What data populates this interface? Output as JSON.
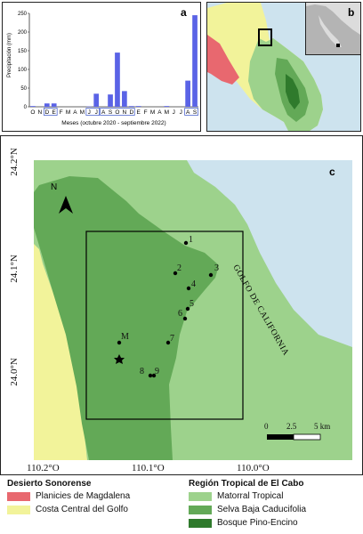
{
  "panel_a": {
    "label": "a",
    "ylabel": "Precipitación (mm)",
    "xlabel": "Meses (octubre 2020 - septiembre 2022)",
    "month_letters": [
      "O",
      "N",
      "D",
      "E",
      "F",
      "M",
      "A",
      "M",
      "J",
      "J",
      "A",
      "S",
      "O",
      "N",
      "D",
      "E",
      "F",
      "M",
      "A",
      "M",
      "J",
      "J",
      "A",
      "S"
    ],
    "boxed_groups": [
      [
        2,
        3
      ],
      [
        8,
        9
      ],
      [
        10,
        11,
        12,
        13,
        14
      ],
      [
        22,
        23
      ]
    ],
    "y_ticks": [
      "0",
      "50",
      "100",
      "150",
      "200",
      "250"
    ]
  },
  "chart_data": {
    "type": "bar",
    "categories": [
      "O",
      "N",
      "D",
      "E",
      "F",
      "M",
      "A",
      "M",
      "J",
      "J",
      "A",
      "S",
      "O",
      "N",
      "D",
      "E",
      "F",
      "M",
      "A",
      "M",
      "J",
      "J",
      "A",
      "S"
    ],
    "values": [
      2,
      0,
      9,
      9,
      0,
      0,
      0,
      0,
      1,
      35,
      0,
      33,
      145,
      42,
      2,
      2,
      0,
      0,
      0,
      2,
      0,
      0,
      70,
      245
    ],
    "title": "",
    "xlabel": "Meses (octubre 2020 - septiembre 2022)",
    "ylabel": "Precipitación (mm)",
    "ylim": [
      0,
      250
    ],
    "color": "#5a63e6"
  },
  "panel_b": {
    "label": "b"
  },
  "panel_c": {
    "label": "c",
    "north": "N",
    "gulf": "GOLFO DE CALIFORNIA",
    "lat_ticks": [
      "24.2°N",
      "24.1°N",
      "24.0°N"
    ],
    "lon_ticks": [
      "110.2°O",
      "110.1°O",
      "110.0°O"
    ],
    "scale_labels": [
      "0",
      "2.5",
      "5 km"
    ],
    "points": [
      {
        "id": "1",
        "label": "1"
      },
      {
        "id": "2",
        "label": "2"
      },
      {
        "id": "3",
        "label": "3"
      },
      {
        "id": "4",
        "label": "4"
      },
      {
        "id": "5",
        "label": "5"
      },
      {
        "id": "6",
        "label": "6"
      },
      {
        "id": "7",
        "label": "7"
      },
      {
        "id": "8",
        "label": "8"
      },
      {
        "id": "9",
        "label": "9"
      },
      {
        "id": "M",
        "label": "M"
      }
    ]
  },
  "legend": {
    "desert_title": "Desierto Sonorense",
    "desert_items": [
      {
        "label": "Planicies de Magdalena",
        "color": "#e8686f"
      },
      {
        "label": "Costa Central del Golfo",
        "color": "#f2f39a"
      }
    ],
    "tropical_title": "Región Tropical de El Cabo",
    "tropical_items": [
      {
        "label": "Matorral Tropical",
        "color": "#9dd28c"
      },
      {
        "label": "Selva Baja Caducifolia",
        "color": "#63a957"
      },
      {
        "label": "Bosque Pino-Encino",
        "color": "#2f7a2c"
      }
    ]
  },
  "colors": {
    "sea": "#cde3ee",
    "matorral": "#9dd28c",
    "selva": "#63a957",
    "bosque": "#2f7a2c",
    "costa": "#f2f39a",
    "planicies": "#e8686f",
    "inset_land": "#dcdcdc",
    "inset_sea": "#b4b4b4"
  }
}
